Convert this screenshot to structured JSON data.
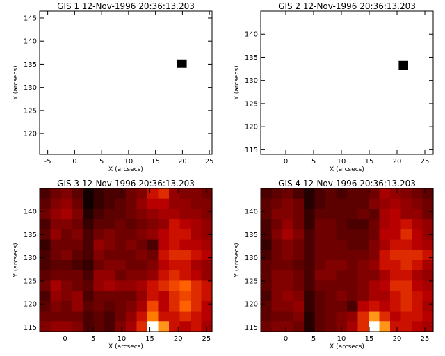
{
  "chart_data": [
    {
      "type": "heatmap",
      "title": "GIS 1 12-Nov-1996 20:36:13.203",
      "xlabel": "X (arcsecs)",
      "ylabel": "Y (arcsecs)",
      "xlim": [
        -6.5,
        25.5
      ],
      "ylim": [
        115.5,
        146.5
      ],
      "xticks": [
        "-5",
        "0",
        "5",
        "10",
        "15",
        "20",
        "25"
      ],
      "yticks": [
        "120",
        "125",
        "130",
        "135",
        "140",
        "145"
      ],
      "background": "#ffffff",
      "blocks": [
        {
          "x0": 19.0,
          "x1": 20.8,
          "y0": 134.2,
          "y1": 136.0,
          "color": "#000000"
        }
      ]
    },
    {
      "type": "heatmap",
      "title": "GIS 2 12-Nov-1996 20:36:13.203",
      "xlabel": "X (arcsecs)",
      "ylabel": "Y (arcsecs)",
      "xlim": [
        -4.5,
        26.5
      ],
      "ylim": [
        114.0,
        145.0
      ],
      "xticks": [
        "0",
        "5",
        "10",
        "15",
        "20",
        "25"
      ],
      "yticks": [
        "115",
        "120",
        "125",
        "130",
        "135",
        "140"
      ],
      "background": "#ffffff",
      "blocks": [
        {
          "x0": 20.3,
          "x1": 22.0,
          "y0": 132.3,
          "y1": 134.2,
          "color": "#000000"
        }
      ]
    },
    {
      "type": "heatmap",
      "title": "GIS 3 12-Nov-1996 20:36:13.203",
      "xlabel": "X (arcsecs)",
      "ylabel": "Y (arcsecs)",
      "xlim": [
        -4.5,
        26.0
      ],
      "ylim": [
        114.0,
        145.0
      ],
      "xticks": [
        "0",
        "5",
        "10",
        "15",
        "20",
        "25"
      ],
      "yticks": [
        "115",
        "120",
        "125",
        "130",
        "135",
        "140"
      ],
      "colormap": "red-temperature",
      "grid": [
        [
          0.2,
          0.3,
          0.35,
          0.25,
          0.05,
          0.15,
          0.2,
          0.2,
          0.3,
          0.35,
          0.55,
          0.6,
          0.4,
          0.35,
          0.35,
          0.3
        ],
        [
          0.25,
          0.35,
          0.4,
          0.3,
          0.05,
          0.15,
          0.2,
          0.25,
          0.3,
          0.4,
          0.5,
          0.5,
          0.4,
          0.4,
          0.35,
          0.35
        ],
        [
          0.3,
          0.4,
          0.45,
          0.35,
          0.1,
          0.2,
          0.25,
          0.25,
          0.3,
          0.35,
          0.4,
          0.45,
          0.45,
          0.4,
          0.4,
          0.35
        ],
        [
          0.2,
          0.35,
          0.35,
          0.3,
          0.15,
          0.25,
          0.25,
          0.3,
          0.25,
          0.3,
          0.35,
          0.4,
          0.55,
          0.5,
          0.45,
          0.4
        ],
        [
          0.25,
          0.4,
          0.3,
          0.35,
          0.2,
          0.3,
          0.35,
          0.3,
          0.3,
          0.35,
          0.4,
          0.5,
          0.55,
          0.55,
          0.45,
          0.4
        ],
        [
          0.15,
          0.3,
          0.3,
          0.3,
          0.2,
          0.4,
          0.35,
          0.3,
          0.35,
          0.3,
          0.2,
          0.5,
          0.55,
          0.5,
          0.5,
          0.45
        ],
        [
          0.2,
          0.3,
          0.35,
          0.25,
          0.2,
          0.35,
          0.3,
          0.3,
          0.3,
          0.35,
          0.3,
          0.55,
          0.6,
          0.6,
          0.55,
          0.5
        ],
        [
          0.2,
          0.25,
          0.25,
          0.2,
          0.15,
          0.3,
          0.35,
          0.35,
          0.3,
          0.3,
          0.35,
          0.5,
          0.55,
          0.55,
          0.45,
          0.4
        ],
        [
          0.25,
          0.3,
          0.3,
          0.3,
          0.2,
          0.4,
          0.4,
          0.3,
          0.35,
          0.35,
          0.4,
          0.55,
          0.6,
          0.55,
          0.5,
          0.4
        ],
        [
          0.3,
          0.45,
          0.35,
          0.3,
          0.25,
          0.4,
          0.45,
          0.4,
          0.4,
          0.45,
          0.55,
          0.6,
          0.65,
          0.7,
          0.6,
          0.55
        ],
        [
          0.2,
          0.4,
          0.35,
          0.4,
          0.2,
          0.3,
          0.3,
          0.3,
          0.3,
          0.4,
          0.55,
          0.5,
          0.6,
          0.65,
          0.6,
          0.55
        ],
        [
          0.25,
          0.35,
          0.3,
          0.4,
          0.25,
          0.3,
          0.25,
          0.3,
          0.35,
          0.45,
          0.65,
          0.5,
          0.6,
          0.7,
          0.6,
          0.5
        ],
        [
          0.3,
          0.3,
          0.3,
          0.3,
          0.2,
          0.25,
          0.2,
          0.3,
          0.4,
          0.55,
          0.75,
          0.55,
          0.55,
          0.6,
          0.55,
          0.5
        ],
        [
          0.35,
          0.4,
          0.4,
          0.35,
          0.2,
          0.25,
          0.2,
          0.35,
          0.45,
          0.6,
          1.0,
          0.8,
          0.55,
          0.5,
          0.55,
          0.45
        ]
      ]
    },
    {
      "type": "heatmap",
      "title": "GIS 4 12-Nov-1996 20:36:13.203",
      "xlabel": "X (arcsecs)",
      "ylabel": "Y (arcsecs)",
      "xlim": [
        -4.5,
        26.5
      ],
      "ylim": [
        114.0,
        145.0
      ],
      "xticks": [
        "0",
        "5",
        "10",
        "15",
        "20",
        "25"
      ],
      "yticks": [
        "115",
        "120",
        "125",
        "130",
        "135",
        "140"
      ],
      "colormap": "red-temperature",
      "grid": [
        [
          0.2,
          0.25,
          0.3,
          0.2,
          0.1,
          0.2,
          0.25,
          0.2,
          0.25,
          0.25,
          0.3,
          0.45,
          0.4,
          0.35,
          0.3,
          0.25
        ],
        [
          0.25,
          0.3,
          0.35,
          0.3,
          0.1,
          0.2,
          0.25,
          0.25,
          0.25,
          0.25,
          0.35,
          0.4,
          0.45,
          0.4,
          0.35,
          0.3
        ],
        [
          0.25,
          0.35,
          0.35,
          0.3,
          0.15,
          0.25,
          0.25,
          0.25,
          0.25,
          0.3,
          0.25,
          0.45,
          0.5,
          0.4,
          0.4,
          0.3
        ],
        [
          0.2,
          0.3,
          0.4,
          0.3,
          0.15,
          0.3,
          0.3,
          0.25,
          0.2,
          0.2,
          0.3,
          0.45,
          0.5,
          0.55,
          0.45,
          0.4
        ],
        [
          0.2,
          0.35,
          0.45,
          0.35,
          0.2,
          0.3,
          0.3,
          0.25,
          0.25,
          0.25,
          0.3,
          0.5,
          0.5,
          0.6,
          0.5,
          0.4
        ],
        [
          0.15,
          0.3,
          0.35,
          0.3,
          0.2,
          0.3,
          0.3,
          0.3,
          0.25,
          0.25,
          0.35,
          0.45,
          0.55,
          0.55,
          0.5,
          0.45
        ],
        [
          0.2,
          0.3,
          0.35,
          0.3,
          0.2,
          0.3,
          0.3,
          0.3,
          0.3,
          0.3,
          0.35,
          0.55,
          0.6,
          0.6,
          0.6,
          0.55
        ],
        [
          0.25,
          0.3,
          0.3,
          0.25,
          0.2,
          0.3,
          0.35,
          0.35,
          0.3,
          0.35,
          0.4,
          0.55,
          0.55,
          0.6,
          0.55,
          0.45
        ],
        [
          0.25,
          0.35,
          0.35,
          0.3,
          0.2,
          0.35,
          0.35,
          0.3,
          0.3,
          0.35,
          0.35,
          0.45,
          0.55,
          0.55,
          0.45,
          0.4
        ],
        [
          0.25,
          0.35,
          0.35,
          0.3,
          0.2,
          0.3,
          0.3,
          0.3,
          0.3,
          0.35,
          0.45,
          0.5,
          0.6,
          0.6,
          0.5,
          0.45
        ],
        [
          0.2,
          0.35,
          0.4,
          0.35,
          0.15,
          0.25,
          0.3,
          0.35,
          0.3,
          0.35,
          0.45,
          0.45,
          0.55,
          0.6,
          0.55,
          0.5
        ],
        [
          0.25,
          0.35,
          0.35,
          0.4,
          0.15,
          0.25,
          0.3,
          0.3,
          0.2,
          0.5,
          0.55,
          0.5,
          0.55,
          0.6,
          0.55,
          0.45
        ],
        [
          0.25,
          0.3,
          0.3,
          0.35,
          0.1,
          0.25,
          0.3,
          0.35,
          0.4,
          0.6,
          0.8,
          0.6,
          0.5,
          0.55,
          0.55,
          0.5
        ],
        [
          0.3,
          0.35,
          0.35,
          0.3,
          0.1,
          0.25,
          0.3,
          0.35,
          0.45,
          0.6,
          1.0,
          0.8,
          0.55,
          0.55,
          0.5,
          0.45
        ]
      ]
    }
  ]
}
